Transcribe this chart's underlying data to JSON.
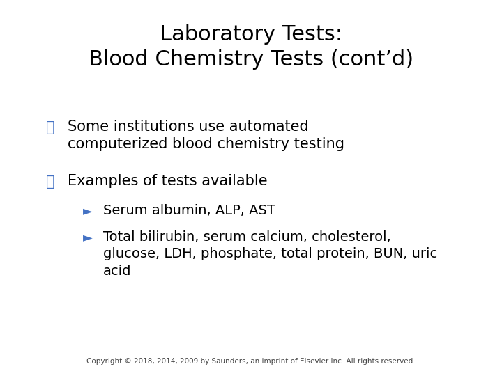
{
  "title_line1": "Laboratory Tests:",
  "title_line2": "Blood Chemistry Tests (cont’d)",
  "title_fontsize": 22,
  "title_color": "#000000",
  "background_color": "#ffffff",
  "bullet_color": "#4472c4",
  "body_fontsize": 15,
  "sub_fontsize": 14,
  "bullet1_text": "Some institutions use automated\ncomputerized blood chemistry testing",
  "bullet2_text": "Examples of tests available",
  "sub1_text": "Serum albumin, ALP, AST",
  "sub2_text": "Total bilirubin, serum calcium, cholesterol,\nglucose, LDH, phosphate, total protein, BUN, uric\nacid",
  "copyright": "Copyright © 2018, 2014, 2009 by Saunders, an imprint of Elsevier Inc. All rights reserved.",
  "copyright_fontsize": 7.5,
  "copyright_color": "#444444",
  "bullet_symbol": "⧴",
  "sub_symbol": "►"
}
